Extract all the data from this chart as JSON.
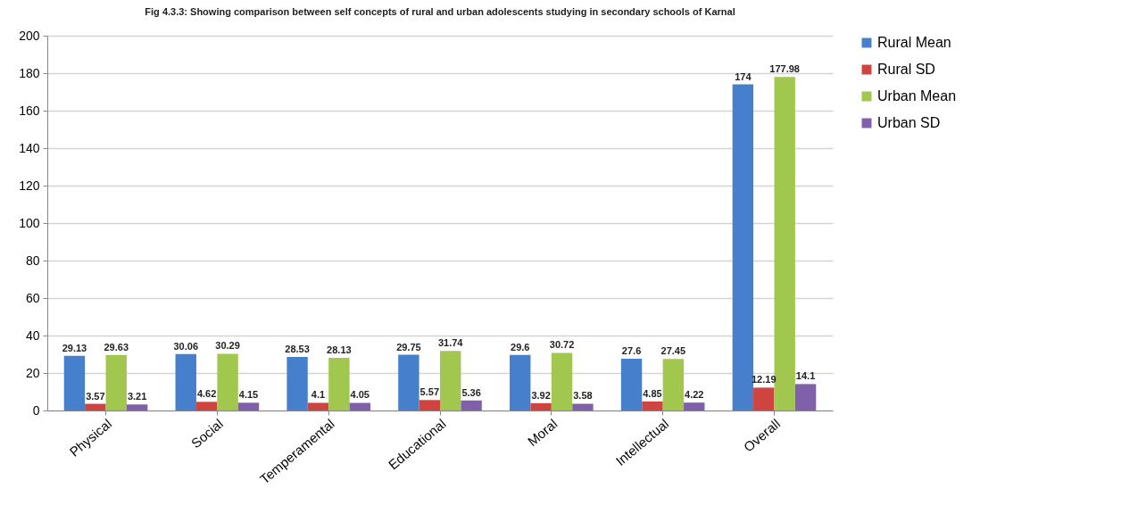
{
  "chart_data": {
    "type": "bar",
    "title": "Fig 4.3.3:  Showing comparison between self concepts of rural and urban adolescents studying in secondary schools of Karnal",
    "categories": [
      "Physical",
      "Social",
      "Temperamental",
      "Educational",
      "Moral",
      "Intellectual",
      "Overall"
    ],
    "series": [
      {
        "name": "Rural Mean",
        "color": "#4680cc",
        "values": [
          29.13,
          30.06,
          28.53,
          29.75,
          29.6,
          27.6,
          174
        ]
      },
      {
        "name": "Rural SD",
        "color": "#cf4440",
        "values": [
          3.57,
          4.62,
          4.1,
          5.57,
          3.92,
          4.85,
          12.19
        ]
      },
      {
        "name": "Urban Mean",
        "color": "#a2c74f",
        "values": [
          29.63,
          30.29,
          28.13,
          31.74,
          30.72,
          27.45,
          177.98
        ]
      },
      {
        "name": "Urban SD",
        "color": "#8060aa",
        "values": [
          3.21,
          4.15,
          4.05,
          5.36,
          3.58,
          4.22,
          14.1
        ]
      }
    ],
    "ylim": [
      0,
      200
    ],
    "yticks": [
      0,
      20,
      40,
      60,
      80,
      100,
      120,
      140,
      160,
      180,
      200
    ],
    "grid": "y",
    "legend": "right",
    "data_labels": true
  }
}
